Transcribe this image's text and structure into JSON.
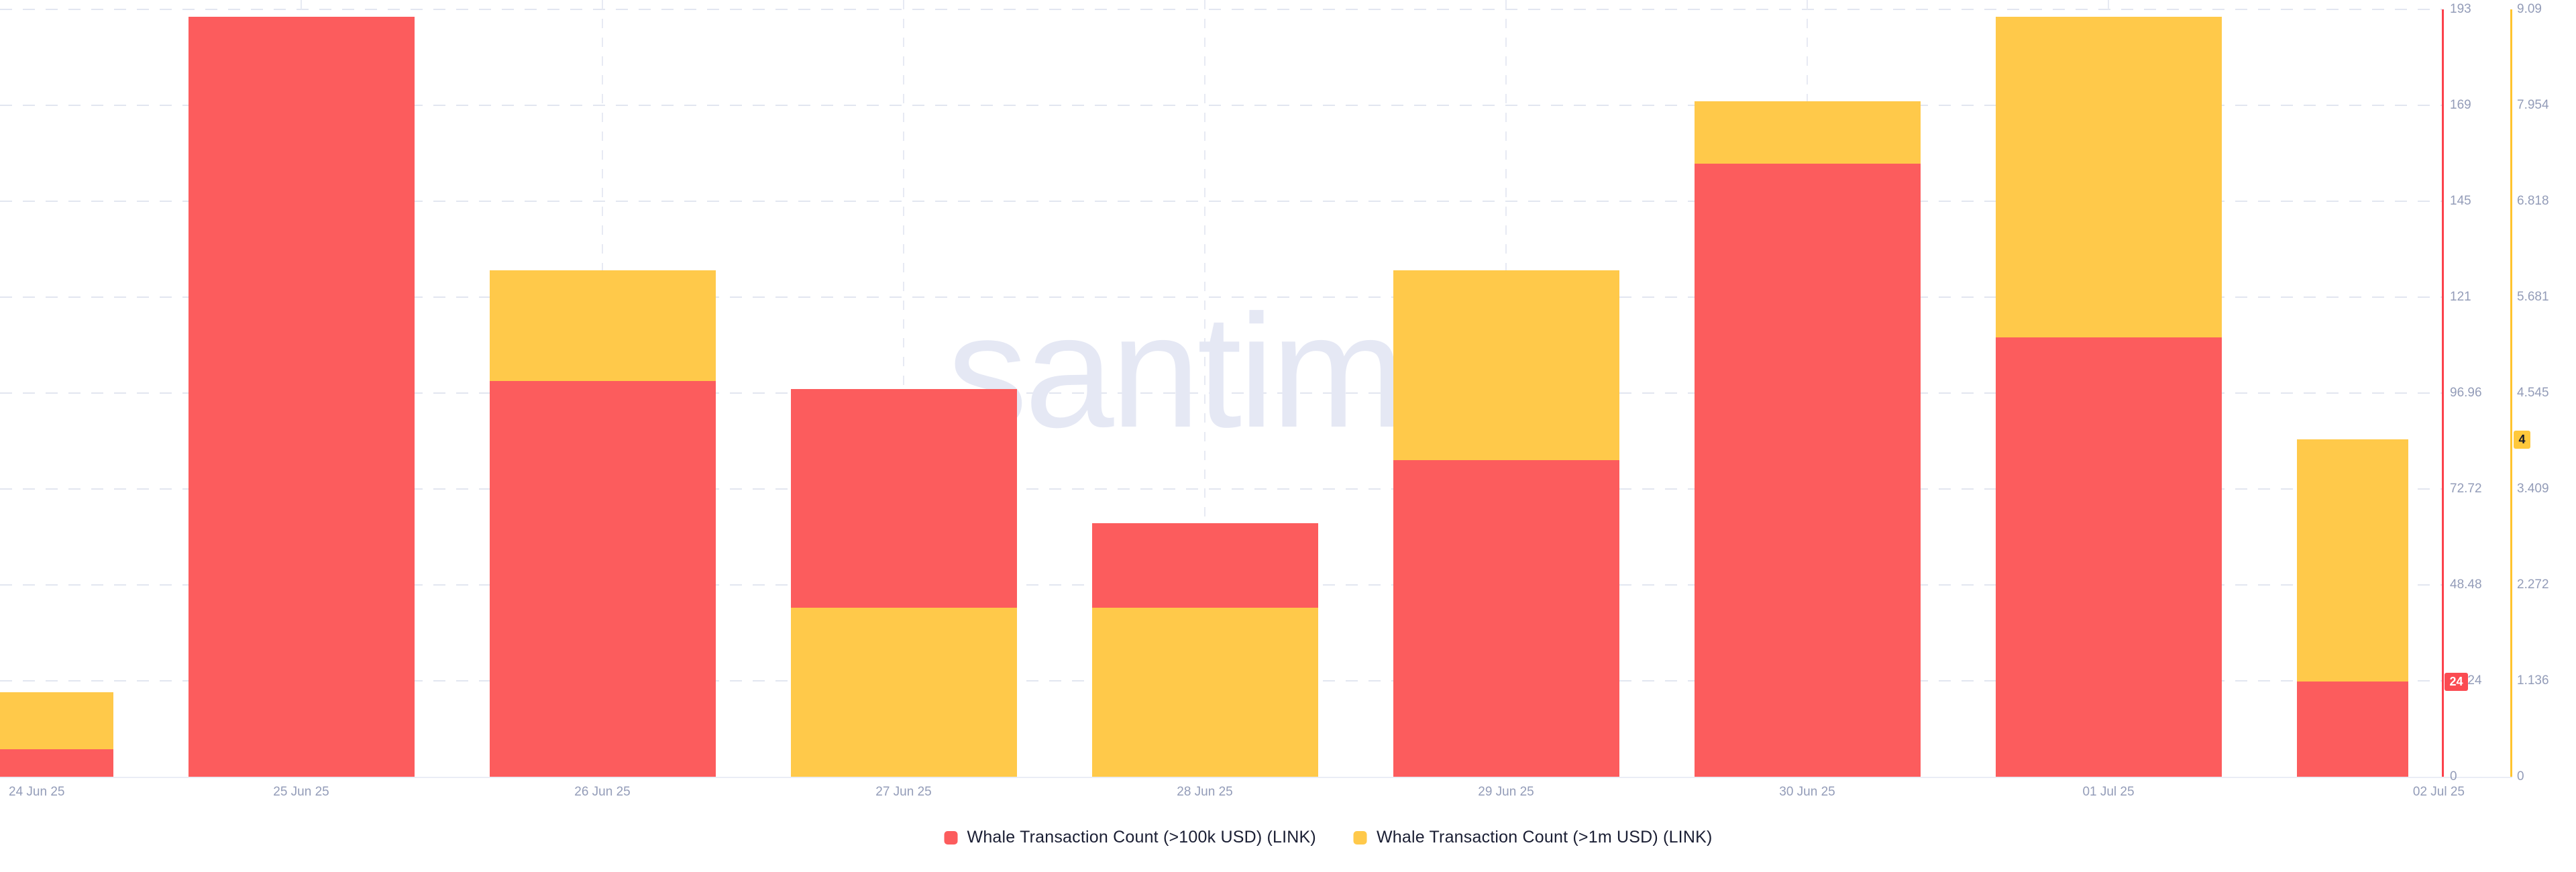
{
  "chart_data": {
    "type": "bar",
    "title": "",
    "watermark": ".santiment",
    "categories": [
      "24 Jun 25",
      "25 Jun 25",
      "26 Jun 25",
      "27 Jun 25",
      "28 Jun 25",
      "29 Jun 25",
      "30 Jun 25",
      "01 Jul 25",
      "02 Jul 25"
    ],
    "layout_hints": {
      "grid": "dashed",
      "legend_position": "bottom-center",
      "bars": "overlapping dual-axis, shorter bar drawn in front"
    },
    "series": [
      {
        "name": "Whale Transaction Count (>100k USD) (LINK)",
        "color": "#fc5c5d",
        "axis_line_color": "#fc414b",
        "axis_side": "right-inner",
        "ylim": [
          0,
          193.92
        ],
        "ticks": [
          "0",
          "24.24",
          "48.48",
          "72.72",
          "96.96",
          "121",
          "145",
          "169",
          "193"
        ],
        "values": [
          7,
          192,
          100,
          98,
          64,
          80,
          155,
          111,
          24
        ],
        "badge": "24",
        "badge_value": 24
      },
      {
        "name": "Whale Transaction Count (>1m USD) (LINK)",
        "color": "#ffc94a",
        "axis_line_color": "#ffc42f",
        "axis_side": "right-outer",
        "ylim": [
          0,
          9.09
        ],
        "ticks": [
          "0",
          "1.136",
          "2.272",
          "3.409",
          "4.545",
          "5.681",
          "6.818",
          "7.954",
          "9.09"
        ],
        "values": [
          1,
          0,
          6,
          2,
          2,
          6,
          8,
          9,
          4
        ],
        "badge": "4",
        "badge_value": 4
      }
    ]
  }
}
